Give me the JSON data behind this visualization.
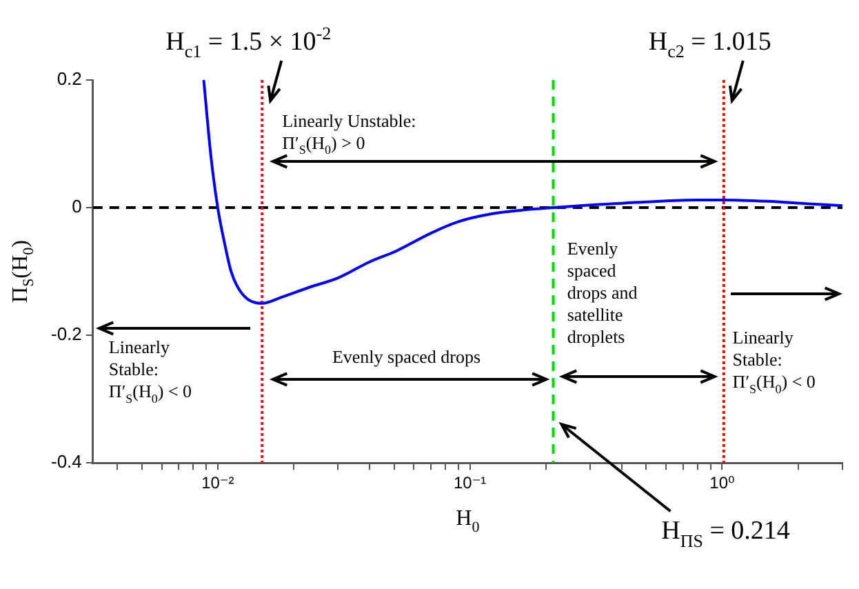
{
  "chart_data": {
    "type": "line",
    "xlabel": "H$_{0}$",
    "ylabel": "Π$_{S}$(H$_{0}$)",
    "x": [
      0.0088,
      0.0094,
      0.01,
      0.0107,
      0.0113,
      0.0125,
      0.015,
      0.018,
      0.023,
      0.03,
      0.04,
      0.051,
      0.07,
      0.09,
      0.121,
      0.16,
      0.214,
      0.3,
      0.5,
      0.8,
      1.0,
      1.5,
      2.2,
      3.0
    ],
    "series": [
      {
        "color": "#0000ff",
        "line_style": "solid",
        "marker": "none",
        "values": [
          0.2,
          0.08,
          0,
          -0.06,
          -0.1,
          -0.135,
          -0.15,
          -0.14,
          -0.125,
          -0.11,
          -0.085,
          -0.068,
          -0.04,
          -0.022,
          -0.01,
          -0.004,
          0,
          0.004,
          0.009,
          0.012,
          0.012,
          0.01,
          0.006,
          0.003
        ]
      }
    ],
    "xlim": [
      0.0032,
      3.0
    ],
    "log": "x",
    "xticks": [
      {
        "value": 0.004,
        "label": null
      },
      {
        "value": 0.005,
        "label": null
      },
      {
        "value": 0.006,
        "label": null
      },
      {
        "value": 0.007,
        "label": null
      },
      {
        "value": 0.008,
        "label": null
      },
      {
        "value": 0.009,
        "label": null
      },
      {
        "value": 0.01,
        "label": "10⁻²"
      },
      {
        "value": 0.02,
        "label": null
      },
      {
        "value": 0.03,
        "label": null
      },
      {
        "value": 0.04,
        "label": null
      },
      {
        "value": 0.05,
        "label": null
      },
      {
        "value": 0.06,
        "label": null
      },
      {
        "value": 0.07,
        "label": null
      },
      {
        "value": 0.08,
        "label": null
      },
      {
        "value": 0.09,
        "label": null
      },
      {
        "value": 0.1,
        "label": "10⁻¹"
      },
      {
        "value": 0.2,
        "label": null
      },
      {
        "value": 0.3,
        "label": null
      },
      {
        "value": 0.4,
        "label": null
      },
      {
        "value": 0.5,
        "label": null
      },
      {
        "value": 0.6,
        "label": null
      },
      {
        "value": 0.7,
        "label": null
      },
      {
        "value": 0.8,
        "label": null
      },
      {
        "value": 0.9,
        "label": null
      },
      {
        "value": 1,
        "label": "10⁰"
      },
      {
        "value": 2,
        "label": null
      },
      {
        "value": 3,
        "label": null
      }
    ],
    "ylim": [
      -0.4,
      0.2
    ],
    "yticks": [
      -0.4,
      -0.2,
      0,
      0.2
    ],
    "ref_lines": [
      {
        "axis": "y",
        "value": 0,
        "color": "#000000",
        "line_style": "dashed"
      },
      {
        "axis": "x",
        "value": 0.015,
        "label": "H$_{c1}$ = 1.5 × 10$^{-2}$",
        "color": "#ff0000",
        "line_style": "dotted"
      },
      {
        "axis": "x",
        "value": 0.214,
        "label": "H$_{ΠS}$ = 0.214",
        "color": "#00dd00",
        "line_style": "dashed"
      },
      {
        "axis": "x",
        "value": 1.015,
        "label": "H$_{c2}$ = 1.015",
        "color": "#ff0000",
        "line_style": "dotted"
      }
    ],
    "annotations": [
      "Linearly Unstable: Π′$_{S}$(H$_{0}$) > 0",
      "Evenly spaced drops",
      "Evenly spaced drops and satellite droplets",
      "Linearly Stable: Π′$_{S}$(H$_{0}$) < 0",
      "Linearly Stable: Π′$_{S}$(H$_{0}$) < 0"
    ],
    "grid": false,
    "legend": false
  }
}
